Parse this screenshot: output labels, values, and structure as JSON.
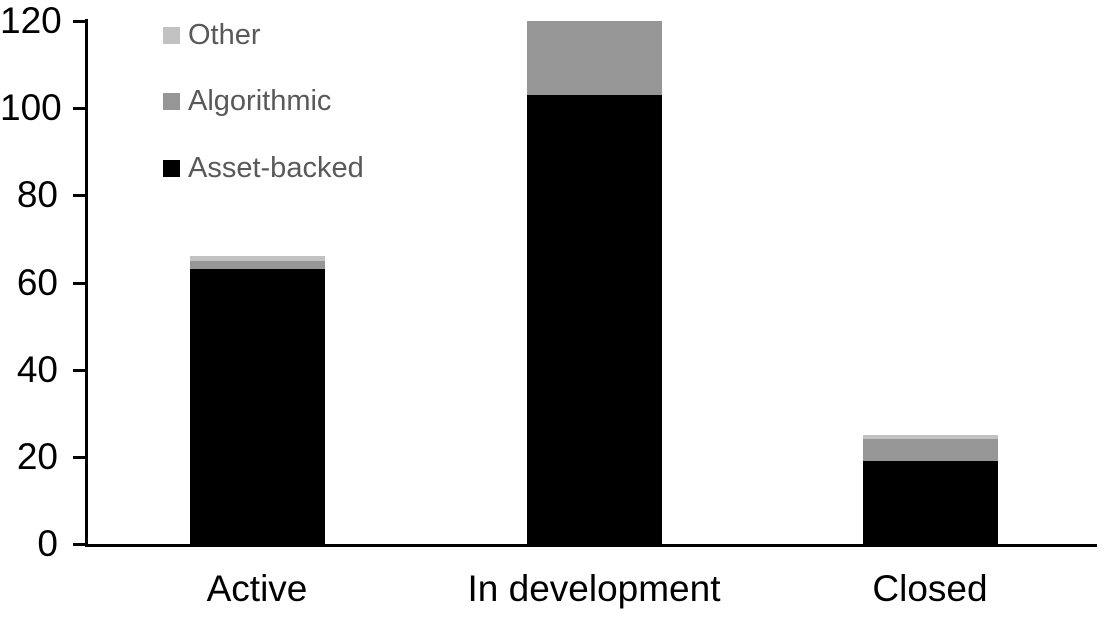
{
  "chart_data": {
    "type": "bar",
    "stacked": true,
    "title": "",
    "categories": [
      "Active",
      "In development",
      "Closed"
    ],
    "series": [
      {
        "name": "Asset-backed",
        "color": "#000000",
        "values": [
          63,
          103,
          19
        ]
      },
      {
        "name": "Algorithmic",
        "color": "#969696",
        "values": [
          2,
          17,
          5
        ]
      },
      {
        "name": "Other",
        "color": "#c2c2c2",
        "values": [
          1,
          0,
          1
        ]
      }
    ],
    "stack_totals": [
      66,
      120,
      25
    ],
    "y_axis": {
      "min": 0,
      "max": 120,
      "tick_step": 20,
      "tick_labels": [
        "0",
        "20",
        "40",
        "60",
        "80",
        "100",
        "120"
      ]
    },
    "x_axis": {
      "labels": [
        "Active",
        "In development",
        "Closed"
      ]
    },
    "legend": {
      "position": "top-left",
      "entries": [
        {
          "label": "Other",
          "color": "#c2c2c2"
        },
        {
          "label": "Algorithmic",
          "color": "#969696"
        },
        {
          "label": "Asset-backed",
          "color": "#000000"
        }
      ]
    },
    "grid": false,
    "background_color": "#ffffff",
    "axis_color": "#000000",
    "axis_label_color": "#000000",
    "legend_text_color": "#595959"
  }
}
